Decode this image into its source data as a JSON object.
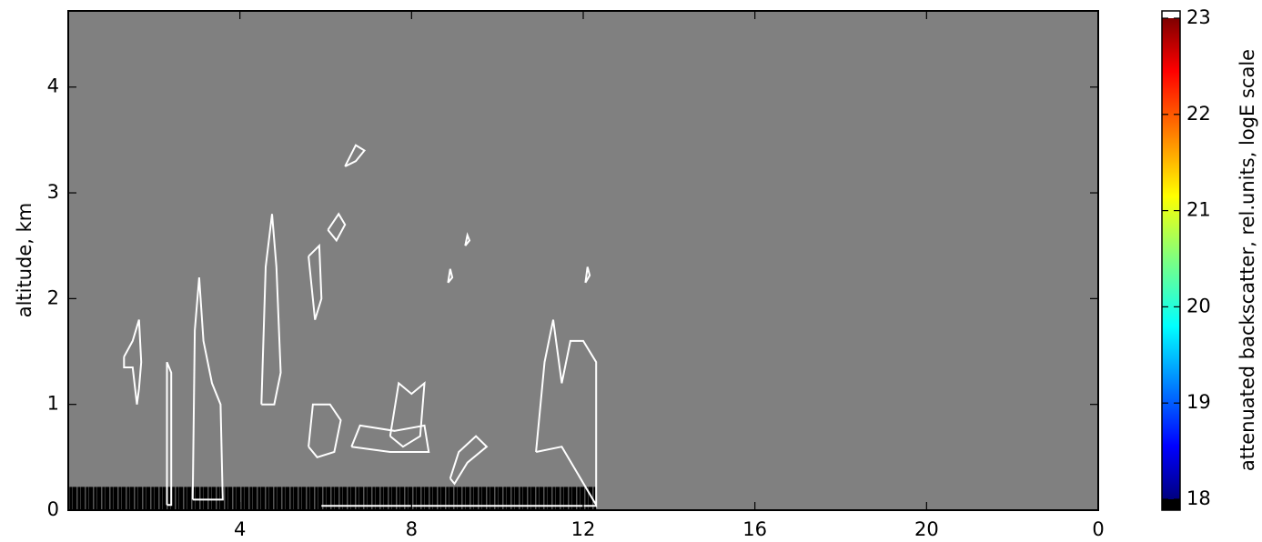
{
  "chart_data": {
    "type": "heatmap",
    "ylabel": "altitude, km",
    "xlim": [
      0,
      24
    ],
    "xticks": [
      4,
      8,
      12,
      16,
      20,
      {
        "value": 24,
        "label": "0"
      }
    ],
    "ylim": [
      0,
      4.72
    ],
    "yticks": [
      0,
      1,
      2,
      3,
      4
    ],
    "ground_band": {
      "x": [
        0,
        12.3
      ],
      "y": [
        0,
        0.22
      ],
      "value": 18
    },
    "contours": [
      {
        "x": [
          1.3,
          1.5,
          1.65,
          1.7,
          1.65,
          1.6,
          1.5,
          1.3,
          1.3
        ],
        "y": [
          1.45,
          1.6,
          1.8,
          1.4,
          1.15,
          1.0,
          1.35,
          1.35,
          1.45
        ]
      },
      {
        "x": [
          2.3,
          2.3,
          2.4,
          2.4,
          2.3
        ],
        "y": [
          0.05,
          1.4,
          1.3,
          0.05,
          0.05
        ]
      },
      {
        "x": [
          2.9,
          2.95,
          3.05,
          3.15,
          3.35,
          3.55,
          3.6,
          2.9
        ],
        "y": [
          0.1,
          1.7,
          2.2,
          1.6,
          1.2,
          1.0,
          0.1,
          0.1
        ]
      },
      {
        "x": [
          4.5,
          4.6,
          4.75,
          4.85,
          4.95,
          4.8,
          4.5
        ],
        "y": [
          1.0,
          2.3,
          2.8,
          2.3,
          1.3,
          1.0,
          1.0
        ]
      },
      {
        "x": [
          5.6,
          5.7,
          6.1,
          6.35,
          6.2,
          5.8,
          5.6
        ],
        "y": [
          0.6,
          1.0,
          1.0,
          0.85,
          0.55,
          0.5,
          0.6
        ]
      },
      {
        "x": [
          6.6,
          6.8,
          7.6,
          8.3,
          8.4,
          7.5,
          6.6
        ],
        "y": [
          0.6,
          0.8,
          0.75,
          0.8,
          0.55,
          0.55,
          0.6
        ]
      },
      {
        "x": [
          7.5,
          7.7,
          8.0,
          8.3,
          8.2,
          7.8,
          7.5
        ],
        "y": [
          0.7,
          1.2,
          1.1,
          1.2,
          0.7,
          0.6,
          0.7
        ]
      },
      {
        "x": [
          8.9,
          9.1,
          9.5,
          9.75,
          9.3,
          9.0,
          8.9
        ],
        "y": [
          0.3,
          0.55,
          0.7,
          0.6,
          0.45,
          0.25,
          0.3
        ]
      },
      {
        "x": [
          10.9,
          11.1,
          11.3,
          11.5,
          11.7,
          12.0,
          12.3,
          12.3,
          11.5,
          10.9
        ],
        "y": [
          0.55,
          1.4,
          1.8,
          1.2,
          1.6,
          1.6,
          1.4,
          0.05,
          0.6,
          0.55
        ]
      },
      {
        "x": [
          6.05,
          6.3,
          6.45,
          6.25,
          6.05
        ],
        "y": [
          2.65,
          2.8,
          2.7,
          2.55,
          2.65
        ]
      },
      {
        "x": [
          6.45,
          6.7,
          6.9,
          6.7,
          6.45
        ],
        "y": [
          3.25,
          3.45,
          3.4,
          3.3,
          3.25
        ]
      },
      {
        "x": [
          5.6,
          5.85,
          5.9,
          5.75,
          5.6
        ],
        "y": [
          2.4,
          2.5,
          2.0,
          1.8,
          2.4
        ]
      },
      {
        "x": [
          9.25,
          9.35,
          9.3,
          9.25
        ],
        "y": [
          2.5,
          2.55,
          2.6,
          2.5
        ]
      },
      {
        "x": [
          8.85,
          8.95,
          8.9,
          8.85
        ],
        "y": [
          2.15,
          2.2,
          2.28,
          2.15
        ]
      },
      {
        "x": [
          12.05,
          12.15,
          12.1,
          12.05
        ],
        "y": [
          2.15,
          2.22,
          2.3,
          2.15
        ]
      },
      {
        "x": [
          5.9,
          12.3
        ],
        "y": [
          0.04,
          0.04
        ]
      }
    ],
    "clim": [
      18,
      23
    ],
    "cticks": [
      18,
      19,
      20,
      21,
      22,
      23
    ],
    "clabel": "attenuated backscatter, rel.units, logE scale"
  }
}
